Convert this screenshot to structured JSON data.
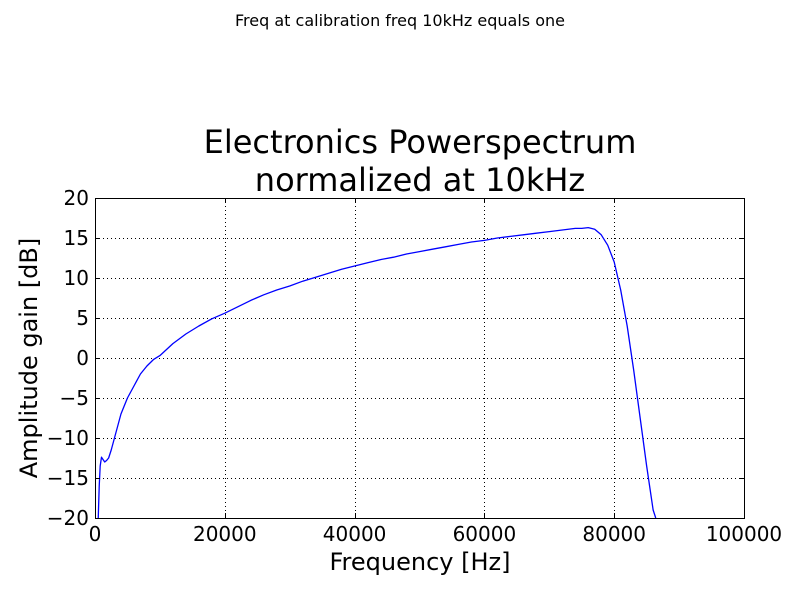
{
  "figure": {
    "suptitle": "Freq at calibration freq 10kHz equals one"
  },
  "chart_data": {
    "type": "line",
    "title_lines": [
      "Electronics Powerspectrum",
      "normalized at 10kHz"
    ],
    "xlabel": "Frequency [Hz]",
    "ylabel": "Amplitude gain [dB]",
    "xlim": [
      0,
      100000
    ],
    "ylim": [
      -20,
      20
    ],
    "xticks": [
      0,
      20000,
      40000,
      60000,
      80000,
      100000
    ],
    "xtick_labels": [
      "0",
      "20000",
      "40000",
      "60000",
      "80000",
      "100000"
    ],
    "yticks": [
      -20,
      -15,
      -10,
      -5,
      0,
      5,
      10,
      15,
      20
    ],
    "ytick_labels": [
      "−20",
      "−15",
      "−10",
      "−5",
      "0",
      "5",
      "10",
      "15",
      "20"
    ],
    "grid": true,
    "colors": {
      "series": "#0000ff"
    },
    "series": [
      {
        "x": [
          500,
          650,
          800,
          1000,
          1250,
          1500,
          1800,
          2100,
          2500,
          3000,
          3500,
          4000,
          4500,
          5000,
          6000,
          7000,
          8000,
          9000,
          10000,
          12000,
          14000,
          16000,
          18000,
          20000,
          22000,
          24000,
          26000,
          28000,
          30000,
          32000,
          34000,
          36000,
          38000,
          40000,
          42000,
          44000,
          46000,
          48000,
          50000,
          52000,
          54000,
          56000,
          58000,
          60000,
          62000,
          64000,
          66000,
          68000,
          70000,
          72000,
          74000,
          75000,
          76000,
          77000,
          78000,
          79000,
          80000,
          81000,
          82000,
          83000,
          84000,
          85000,
          86000,
          86400
        ],
        "y": [
          -20.0,
          -16.0,
          -13.5,
          -12.4,
          -12.7,
          -13.0,
          -12.8,
          -12.5,
          -11.5,
          -10.0,
          -8.5,
          -7.0,
          -6.0,
          -5.0,
          -3.5,
          -2.0,
          -1.0,
          -0.2,
          0.3,
          1.8,
          3.0,
          4.0,
          4.9,
          5.6,
          6.4,
          7.2,
          7.9,
          8.5,
          9.0,
          9.6,
          10.1,
          10.6,
          11.1,
          11.5,
          11.9,
          12.3,
          12.6,
          13.0,
          13.3,
          13.6,
          13.9,
          14.2,
          14.5,
          14.7,
          15.0,
          15.2,
          15.4,
          15.6,
          15.8,
          16.0,
          16.2,
          16.2,
          16.3,
          16.1,
          15.4,
          14.1,
          12.0,
          8.5,
          4.0,
          -1.5,
          -7.5,
          -13.5,
          -19.0,
          -20.0
        ]
      }
    ]
  }
}
